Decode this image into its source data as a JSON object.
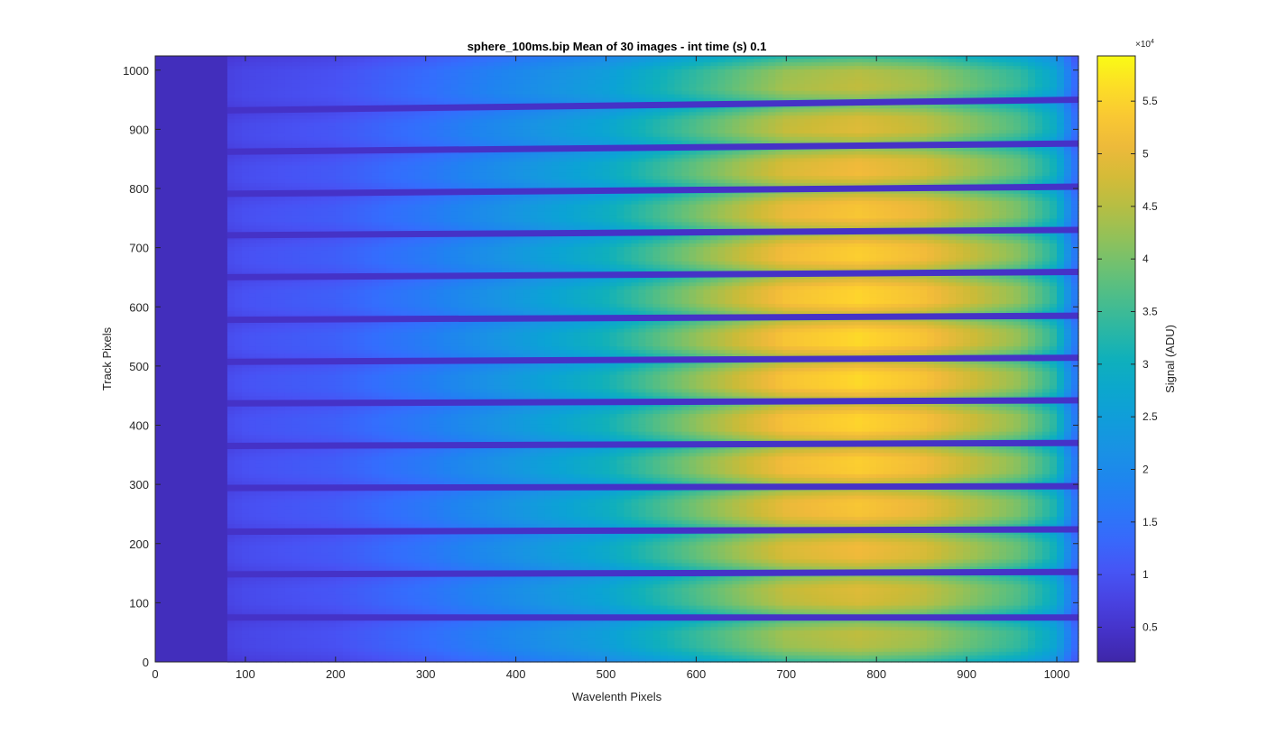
{
  "chart_data": {
    "type": "heatmap",
    "title": "sphere_100ms.bip  Mean of 30 images - int time (s) 0.1",
    "xlabel": "Wavelenth Pixels",
    "ylabel": "Track Pixels",
    "xlim": [
      0,
      1024
    ],
    "ylim": [
      0,
      1024
    ],
    "x_ticks": [
      0,
      100,
      200,
      300,
      400,
      500,
      600,
      700,
      800,
      900,
      1000
    ],
    "y_ticks": [
      0,
      100,
      200,
      300,
      400,
      500,
      600,
      700,
      800,
      900,
      1000
    ],
    "grid": false,
    "colormap": "parula",
    "colorbar": {
      "label": "Signal (ADU)",
      "exponent_label": "×10",
      "exponent_power": "4",
      "clim": [
        0.17,
        5.93
      ],
      "ticks": [
        0.5,
        1,
        1.5,
        2,
        2.5,
        3,
        3.5,
        4,
        4.5,
        5,
        5.5
      ],
      "tick_labels": [
        "0.5",
        "1",
        "1.5",
        "2",
        "2.5",
        "3",
        "3.5",
        "4",
        "4.5",
        "5",
        "5.5"
      ]
    },
    "dark_region_x_end": 80,
    "background_value": 0.35,
    "gap_value": 0.45,
    "gaps": [
      {
        "x_start": 80,
        "x_end": 1024,
        "y_left": 75,
        "y_right": 75
      },
      {
        "x_start": 80,
        "x_end": 1024,
        "y_left": 148,
        "y_right": 152
      },
      {
        "x_start": 80,
        "x_end": 1024,
        "y_left": 220,
        "y_right": 224
      },
      {
        "x_start": 80,
        "x_end": 1024,
        "y_left": 294,
        "y_right": 297
      },
      {
        "x_start": 80,
        "x_end": 1024,
        "y_left": 365,
        "y_right": 370
      },
      {
        "x_start": 80,
        "x_end": 1024,
        "y_left": 437,
        "y_right": 442
      },
      {
        "x_start": 80,
        "x_end": 1024,
        "y_left": 507,
        "y_right": 514
      },
      {
        "x_start": 80,
        "x_end": 1024,
        "y_left": 578,
        "y_right": 585
      },
      {
        "x_start": 80,
        "x_end": 1024,
        "y_left": 650,
        "y_right": 659
      },
      {
        "x_start": 80,
        "x_end": 1024,
        "y_left": 721,
        "y_right": 730
      },
      {
        "x_start": 80,
        "x_end": 1024,
        "y_left": 791,
        "y_right": 803
      },
      {
        "x_start": 80,
        "x_end": 1024,
        "y_left": 862,
        "y_right": 876
      },
      {
        "x_start": 80,
        "x_end": 1024,
        "y_left": 932,
        "y_right": 950
      }
    ],
    "spectral_profile": {
      "x": [
        80,
        100,
        200,
        300,
        400,
        500,
        600,
        700,
        780,
        850,
        900,
        960,
        1000,
        1015,
        1024
      ],
      "peak_signal": [
        0.9,
        1.0,
        1.2,
        1.7,
        2.4,
        3.1,
        4.2,
        5.3,
        5.6,
        5.3,
        4.8,
        4.2,
        3.3,
        2.0,
        1.5
      ]
    }
  }
}
